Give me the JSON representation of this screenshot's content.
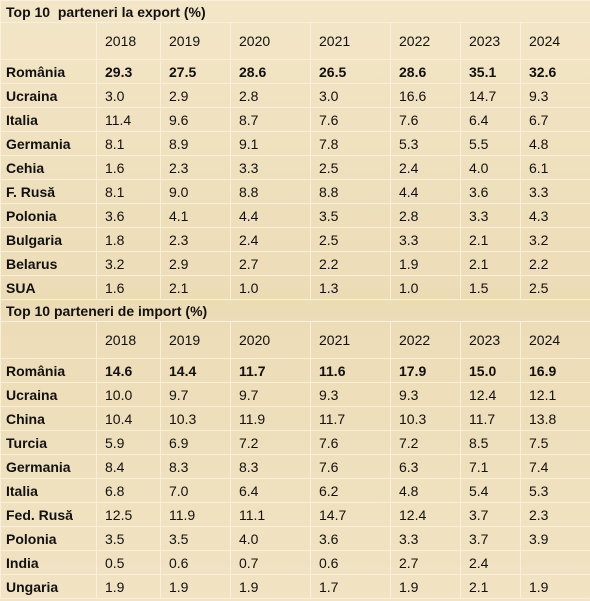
{
  "sections": [
    {
      "title": "Top 10  parteneri la export (%)",
      "years": [
        "2018",
        "2019",
        "2020",
        "2021",
        "2022",
        "2023",
        "2024"
      ],
      "rows": [
        {
          "label": "România",
          "values": [
            "29.3",
            "27.5",
            "28.6",
            "26.5",
            "28.6",
            "35.1",
            "32.6"
          ]
        },
        {
          "label": "Ucraina",
          "values": [
            "3.0",
            "2.9",
            "2.8",
            "3.0",
            "16.6",
            "14.7",
            "9.3"
          ]
        },
        {
          "label": "Italia",
          "values": [
            "11.4",
            "9.6",
            "8.7",
            "7.6",
            "7.6",
            "6.4",
            "6.7"
          ]
        },
        {
          "label": "Germania",
          "values": [
            "8.1",
            "8.9",
            "9.1",
            "7.8",
            "5.3",
            "5.5",
            "4.8"
          ]
        },
        {
          "label": "Cehia",
          "values": [
            "1.6",
            "2.3",
            "3.3",
            "2.5",
            "2.4",
            "4.0",
            "6.1"
          ]
        },
        {
          "label": "F. Rusă",
          "values": [
            "8.1",
            "9.0",
            "8.8",
            "8.8",
            "4.4",
            "3.6",
            "3.3"
          ]
        },
        {
          "label": "Polonia",
          "values": [
            "3.6",
            "4.1",
            "4.4",
            "3.5",
            "2.8",
            "3.3",
            "4.3"
          ]
        },
        {
          "label": "Bulgaria",
          "values": [
            "1.8",
            "2.3",
            "2.4",
            "2.5",
            "3.3",
            "2.1",
            "3.2"
          ]
        },
        {
          "label": "Belarus",
          "values": [
            "3.2",
            "2.9",
            "2.7",
            "2.2",
            "1.9",
            "2.1",
            "2.2"
          ]
        },
        {
          "label": "SUA",
          "values": [
            "1.6",
            "2.1",
            "1.0",
            "1.3",
            "1.0",
            "1.5",
            "2.5"
          ]
        }
      ]
    },
    {
      "title": "Top 10 parteneri de import (%)",
      "years": [
        "2018",
        "2019",
        "2020",
        "2021",
        "2022",
        "2023",
        "2024"
      ],
      "rows": [
        {
          "label": "România",
          "values": [
            "14.6",
            "14.4",
            "11.7",
            "11.6",
            "17.9",
            "15.0",
            "16.9"
          ]
        },
        {
          "label": "Ucraina",
          "values": [
            "10.0",
            "9.7",
            "9.7",
            "9.3",
            "9.3",
            "12.4",
            "12.1"
          ]
        },
        {
          "label": "China",
          "values": [
            "10.4",
            "10.3",
            "11.9",
            "11.7",
            "10.3",
            "11.7",
            "13.8"
          ]
        },
        {
          "label": "Turcia",
          "values": [
            "5.9",
            "6.9",
            "7.2",
            "7.6",
            "7.2",
            "8.5",
            "7.5"
          ]
        },
        {
          "label": "Germania",
          "values": [
            "8.4",
            "8.3",
            "8.3",
            "7.6",
            "6.3",
            "7.1",
            "7.4"
          ]
        },
        {
          "label": "Italia",
          "values": [
            "6.8",
            "7.0",
            "6.4",
            "6.2",
            "4.8",
            "5.4",
            "5.3"
          ]
        },
        {
          "label": "Fed. Rusă",
          "values": [
            "12.5",
            "11.9",
            "11.1",
            "14.7",
            "12.4",
            "3.7",
            "2.3"
          ]
        },
        {
          "label": "Polonia",
          "values": [
            "3.5",
            "3.5",
            "4.0",
            "3.6",
            "3.3",
            "3.7",
            "3.9"
          ]
        },
        {
          "label": "India",
          "values": [
            "0.5",
            "0.6",
            "0.7",
            "0.6",
            "2.7",
            "2.4",
            null
          ]
        },
        {
          "label": "Ungaria",
          "values": [
            "1.9",
            "1.9",
            "1.9",
            "1.7",
            "1.9",
            "2.1",
            "1.9"
          ]
        }
      ]
    }
  ]
}
